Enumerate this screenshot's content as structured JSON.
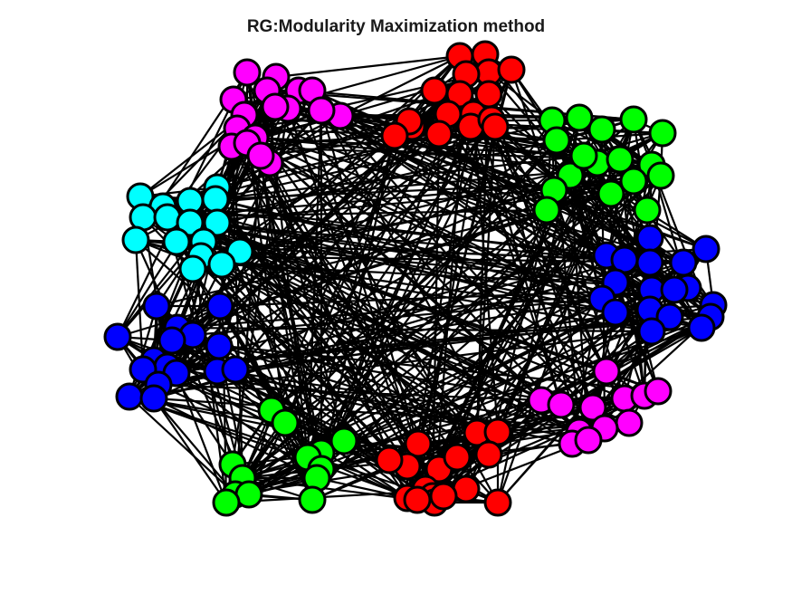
{
  "figure": {
    "title": "RG:Modularity Maximization method"
  },
  "graph": {
    "edge_color": "#000000",
    "node_outline": "#000000",
    "communities": [
      {
        "id": "magenta-top-left",
        "color": "#ff00ff"
      },
      {
        "id": "red-top",
        "color": "#ff0000"
      },
      {
        "id": "green-top-right",
        "color": "#00ff00"
      },
      {
        "id": "cyan-left",
        "color": "#00ffff"
      },
      {
        "id": "blue-right",
        "color": "#0000ff"
      },
      {
        "id": "blue-left",
        "color": "#0000ff"
      },
      {
        "id": "magenta-bottom-right",
        "color": "#ff00ff"
      },
      {
        "id": "green-bottom-left",
        "color": "#00ff00"
      },
      {
        "id": "red-bottom",
        "color": "#ff0000"
      }
    ]
  }
}
